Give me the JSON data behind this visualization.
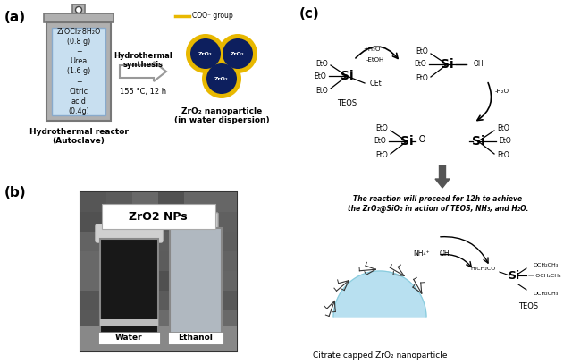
{
  "panel_a_label": "(a)",
  "panel_b_label": "(b)",
  "panel_c_label": "(c)",
  "reactor_text": "ZrOCl₂·8H₂O\n(0.8 g)\n+\nUrea\n(1.6 g)\n+\nCitric\nacid\n(0.4g)",
  "reactor_label": "Hydrothermal reactor\n(Autoclave)",
  "synthesis_label": "Hydrothermal\nsynthesis",
  "temp_label": "155 °C, 12 h",
  "nanoparticle_label": "ZrO₂ nanoparticle\n(in water dispersion)",
  "coo_legend": "COO⁻ group",
  "zro2_text": "ZrO₂",
  "reaction_text": "The reaction will proceed for 12h to achieve\nthe ZrO₂@SiO₂ in action of TEOS, NH₃, and H₂O.",
  "citrate_label": "Citrate capped ZrO₂ nanoparticle",
  "teos_label1": "TEOS",
  "teos_label2": "TEOS",
  "water_label": "Water",
  "ethanol_label": "Ethanol",
  "zro2_np_label": "ZrO2 NPs",
  "bg_color": "#ffffff",
  "reactor_fill": "#c8dff0",
  "reactor_gray": "#b0b0b0",
  "reactor_border": "#888888",
  "dark_blue": "#0d1f5e",
  "gold": "#e8b800",
  "light_blue_particle": "#b8e0f0",
  "photo_bg": "#6a6a6a",
  "photo_left_vial": "#1a1a1a",
  "photo_right_vial": "#b5bfca",
  "photo_surface": "#888888"
}
